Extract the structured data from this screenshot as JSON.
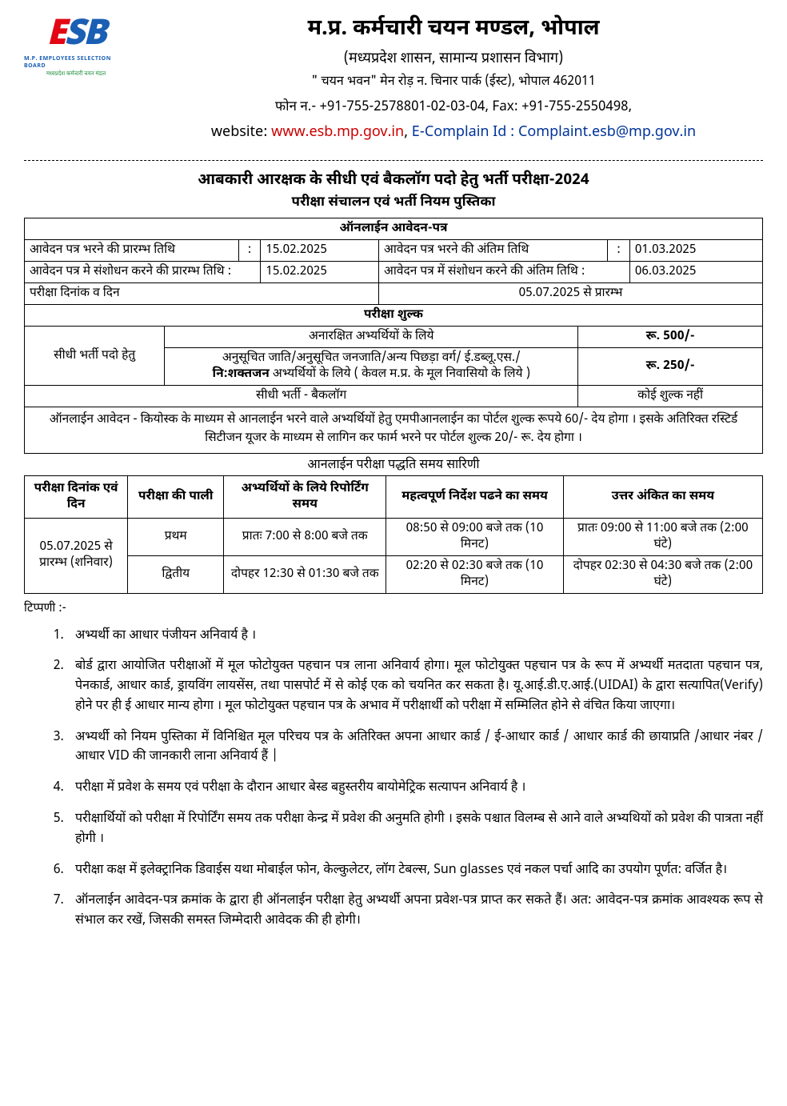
{
  "logo": {
    "text": "ESB",
    "colors": [
      "#e30613",
      "#1a5fb4",
      "#1a5fb4"
    ],
    "sub1": "M.P. EMPLOYEES SELECTION BOARD",
    "sub2": "मध्यप्रदेश कर्मचारी चयन मंडल"
  },
  "header": {
    "org_title": "म.प्र. कर्मचारी चयन मण्डल, भोपाल",
    "org_sub": "(मध्यप्रदेश शासन, सामान्य प्रशासन विभाग)",
    "addr": "\" चयन भवन\" मेन रोड़ न. चिनार पार्क (ईस्ट), भोपाल 462011",
    "phone": "फोन न.- +91-755-2578801-02-03-04, Fax: +91-755-2550498,",
    "web_label": "website: ",
    "web_url": "www.esb.mp.gov.in",
    "sep": ",  ",
    "complain_label": "E-Complain Id : ",
    "complain_id": "Complaint.esb@mp.gov.in"
  },
  "doc": {
    "title": "आबकारी आरक्षक के सीधी एवं बैकलॉग पदो हेतु भर्ती परीक्षा-2024",
    "subtitle": "परीक्षा संचालन एवं भर्ती नियम पुस्तिका"
  },
  "dates": {
    "section": "ऑनलाईन आवेदन-पत्र",
    "r1l": "आवेदन पत्र भरने की प्रारम्भ तिथि",
    "r1lv": "15.02.2025",
    "r1r": "आवेदन पत्र भरने की अंतिम तिथि",
    "r1rv": "01.03.2025",
    "r2l": "आवेदन पत्र मे संशोधन करने की प्रारम्भ तिथि  :",
    "r2lv": "15.02.2025",
    "r2r": "आवेदन पत्र में संशोधन करने की अंतिम तिथि  :",
    "r2rv": "06.03.2025",
    "r3l": "परीक्षा दिनांक व दिन",
    "r3v": "05.07.2025 से प्रारम्भ"
  },
  "fees": {
    "section": "परीक्षा शुल्क",
    "lhs": "सीधी भर्ती पदो हेतु",
    "row1": "अनारक्षित अभ्यर्थियों के लिये",
    "row1v": "रू. 500/-",
    "row2": "अनुसूचित जाति/अनुसूचित जनजाति/अन्य पिछड़ा वर्ग/ ई.डब्लू.एस./",
    "row2b": "नि:शक्तजन",
    "row2c": " अभ्यर्थियों के लिये   ( केवल म.प्र. के मूल निवासियो के लिये )",
    "row2v": "रू. 250/-",
    "row3": "सीधी भर्ती - बैकलॉग",
    "row3v": "कोई शुल्क नहीं",
    "note": "ऑनलाईन आवेदन - कियोस्क के माध्यम से आनलाईन भरने वाले अभ्यर्थियों हेतु एमपीआनलाईन का पोर्टल शुल्क रूपये 60/- देय होगा । इसके अतिरिक्त रस्टिर्ड सिटीजन यूजर के माध्यम से लागिन कर फार्म भरने पर पोर्टल शुल्क 20/- रू. देय होगा ।"
  },
  "sched": {
    "title": "आनलाईन परीक्षा पद्धति समय सारिणी",
    "h1": "परीक्षा दिनांक एवं दिन",
    "h2": "परीक्षा की पाली",
    "h3": "अभ्यर्थियों के लिये रिपोर्टिंग समय",
    "h4": "महत्वपूर्ण निर्देश पढने का समय",
    "h5": "उत्तर अंकित  का समय",
    "date": "05.07.2025 से प्रारम्भ (शनिवार)",
    "s1_shift": "प्रथम",
    "s1_report": "प्रातः 7:00 से 8:00 बजे तक",
    "s1_read": "08:50 से 09:00 बजे तक (10 मिनट)",
    "s1_ans": "प्रातः 09:00 से 11:00 बजे तक (2:00 घंटे)",
    "s2_shift": "द्वितीय",
    "s2_report": "दोपहर 12:30 से 01:30 बजे तक",
    "s2_read": "02:20 से 02:30 बजे तक (10 मिनट)",
    "s2_ans": "दोपहर 02:30 से 04:30 बजे तक (2:00 घंटे)"
  },
  "notes": {
    "label": "टिप्पणी :-",
    "items": [
      "अभ्यर्थी का आधार पंजीयन अनिवार्य है ।",
      "बोर्ड द्वारा आयोजित परीक्षाओं में मूल फोटोयुक्त पहचान पत्र लाना अनिवार्य होगा। मूल फोटोयुक्त पहचान पत्र के रूप में अभ्यर्थी मतदाता पहचान पत्र, पेनकार्ड, आधार कार्ड, ड्रायविंग लायसेंस, तथा पासपोर्ट में से कोई एक को चयनित कर सकता है। यू.आई.डी.ए.आई.(UIDAI) के द्वारा सत्यापित(Verify) होने पर ही ई आधार मान्य होगा । मूल फोटोयुक्त पहचान पत्र के अभाव में परीक्षार्थी को परीक्षा में सम्मिलित होने से वंचित किया जाएगा।",
      "अभ्यर्थी को नियम पुस्तिका में विनिश्चित मूल परिचय पत्र के अतिरिक्त अपना आधार कार्ड / ई-आधार कार्ड  / आधार कार्ड की छायाप्रति  /आधार नंबर  /आधार VID की जानकारी लाना अनिवार्य हैं |",
      "परीक्षा में प्रवेश के समय एवं परीक्षा के दौरान आधार बेस्ड बहुस्तरीय बायोमेट्रिक सत्यापन अनिवार्य है ।",
      "परीक्षार्थियों को परीक्षा में रिपोर्टिंग समय तक परीक्षा केन्द्र में प्रवेश की अनुमति होगी । इसके पश्चात विलम्ब से आने वाले अभ्यथियों को प्रवेश की पात्रता नहीं होगी ।",
      "परीक्षा कक्ष में इलेक्ट्रानिक डिवाईस यथा मोबाईल फोन, केल्कुलेटर, लॉग टेबल्स, Sun glasses एवं नकल पर्चा आदि का उपयोग पूर्णत: वर्जित है।",
      "ऑनलाईन आवेदन-पत्र क्रमांक के द्वारा ही ऑनलाईन परीक्षा हेतु अभ्यर्थी अपना प्रवेश-पत्र प्राप्त कर सकते हैं। अत: आवेदन-पत्र क्रमांक आवश्यक रूप से संभाल कर रखें, जिसकी समस्त जिम्मेदारी आवेदक की ही होगी।"
    ]
  }
}
